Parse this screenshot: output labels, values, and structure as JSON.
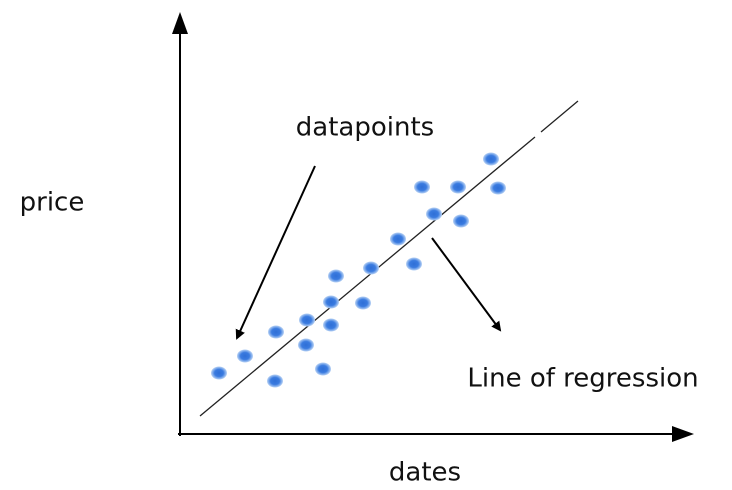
{
  "y_axis_label": "price",
  "x_axis_label": "dates",
  "annotations": {
    "points": "datapoints",
    "line": "Line of regression"
  }
}
